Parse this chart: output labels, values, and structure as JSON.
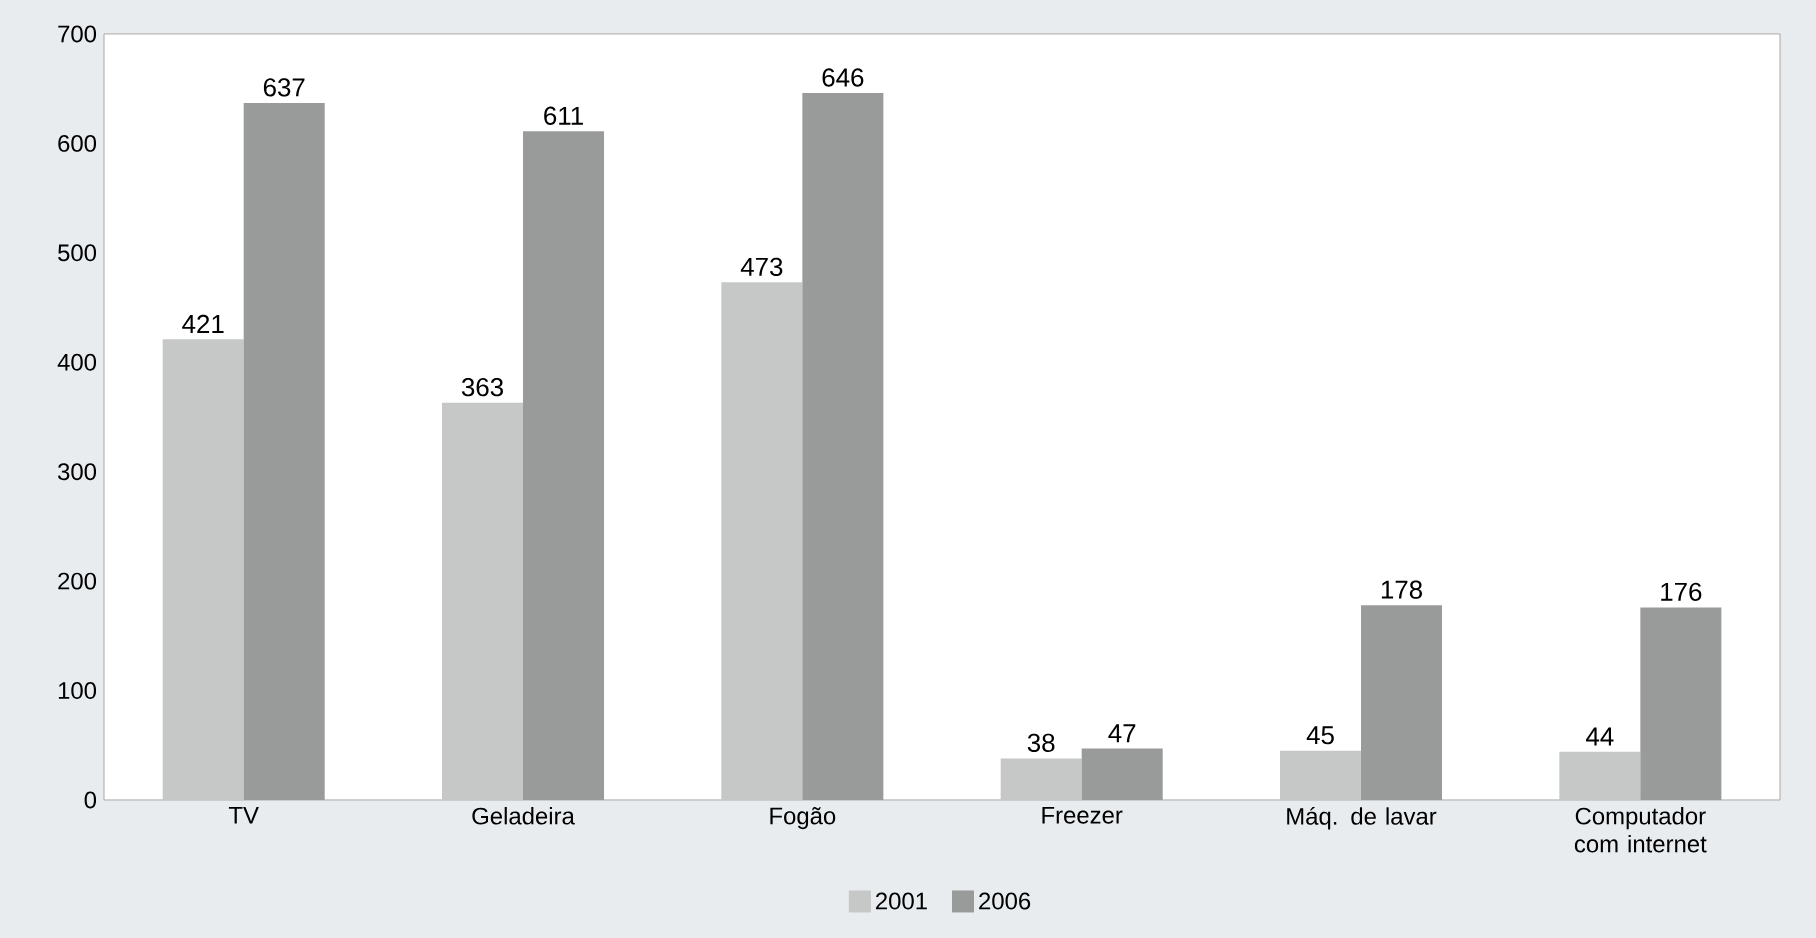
{
  "chart_data": {
    "type": "bar",
    "categories": [
      "TV",
      "Geladeira",
      "Fogão",
      "Freezer",
      "Máq. de lavar",
      "Computador com internet"
    ],
    "series": [
      {
        "name": "2001",
        "color": "#c6c7c7",
        "values": [
          421,
          363,
          473,
          38,
          45,
          44
        ]
      },
      {
        "name": "2006",
        "color": "#999a9a",
        "values": [
          637,
          611,
          646,
          47,
          178,
          176
        ]
      }
    ],
    "ylim": [
      0,
      700
    ],
    "yticks": [
      0,
      100,
      200,
      300,
      400,
      500,
      600,
      700
    ],
    "data_labels": true,
    "legend": "bottom",
    "grid": false
  }
}
